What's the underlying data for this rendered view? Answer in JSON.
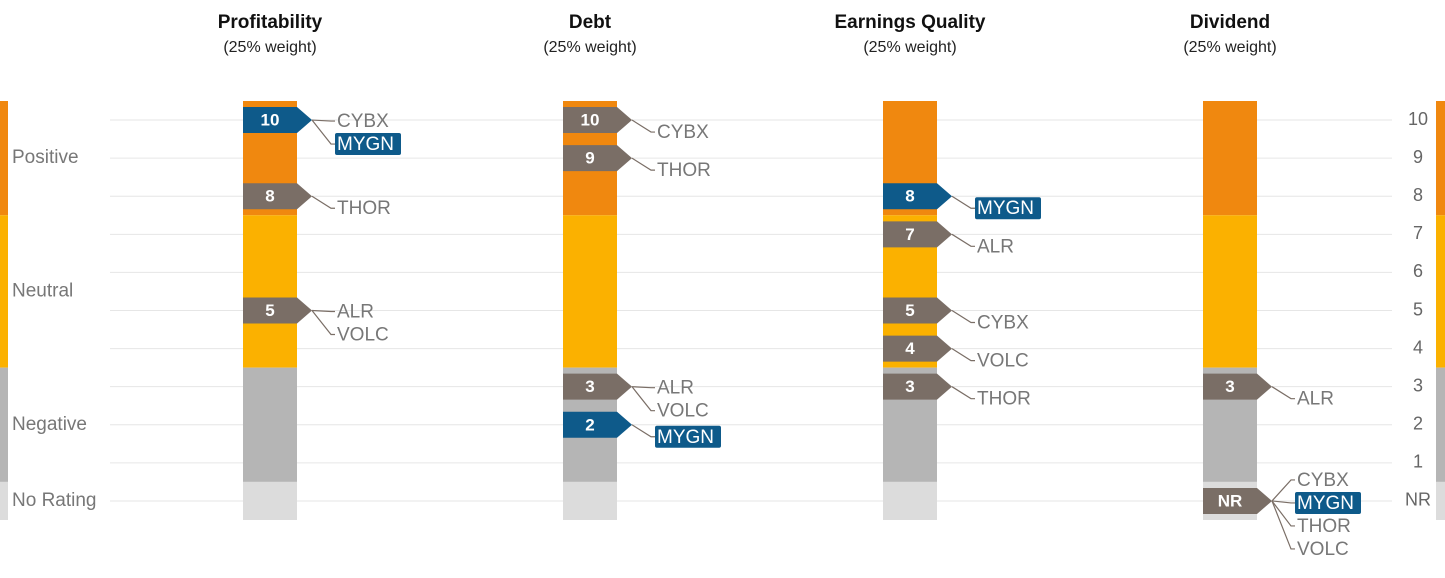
{
  "chart_data": {
    "type": "rating",
    "ylim": [
      -0.5,
      10.5
    ],
    "yticks": [
      {
        "value": 0,
        "label": "NR"
      },
      1,
      2,
      3,
      4,
      5,
      6,
      7,
      8,
      9,
      10
    ],
    "grid": true,
    "highlight": "MYGN",
    "bands": [
      {
        "name": "Positive",
        "from": 7.5,
        "to": 10.5,
        "color": "#f0880f"
      },
      {
        "name": "Neutral",
        "from": 3.5,
        "to": 7.5,
        "color": "#fbb100"
      },
      {
        "name": "Negative",
        "from": 0.5,
        "to": 3.5,
        "color": "#b5b5b5"
      },
      {
        "name": "No Rating",
        "from": -0.5,
        "to": 0.5,
        "color": "#dcdcdc"
      }
    ],
    "panels": [
      {
        "title": "Profitability",
        "subtitle": "(25% weight)",
        "markers": [
          {
            "score": 10,
            "color": "#0e5a8a",
            "companies": [
              "CYBX",
              "MYGN"
            ]
          },
          {
            "score": 8,
            "color": "#7a6e66",
            "companies": [
              "THOR"
            ]
          },
          {
            "score": 5,
            "color": "#7a6e66",
            "companies": [
              "ALR",
              "VOLC"
            ]
          }
        ]
      },
      {
        "title": "Debt",
        "subtitle": "(25% weight)",
        "markers": [
          {
            "score": 10,
            "color": "#7a6e66",
            "companies": [
              "CYBX"
            ]
          },
          {
            "score": 9,
            "color": "#7a6e66",
            "companies": [
              "THOR"
            ]
          },
          {
            "score": 3,
            "color": "#7a6e66",
            "companies": [
              "ALR",
              "VOLC"
            ]
          },
          {
            "score": 2,
            "color": "#0e5a8a",
            "companies": [
              "MYGN"
            ]
          }
        ]
      },
      {
        "title": "Earnings Quality",
        "subtitle": "(25% weight)",
        "markers": [
          {
            "score": 8,
            "color": "#0e5a8a",
            "companies": [
              "MYGN"
            ]
          },
          {
            "score": 7,
            "color": "#7a6e66",
            "companies": [
              "ALR"
            ]
          },
          {
            "score": 5,
            "color": "#7a6e66",
            "companies": [
              "CYBX"
            ]
          },
          {
            "score": 4,
            "color": "#7a6e66",
            "companies": [
              "VOLC"
            ]
          },
          {
            "score": 3,
            "color": "#7a6e66",
            "companies": [
              "THOR"
            ]
          }
        ]
      },
      {
        "title": "Dividend",
        "subtitle": "(25% weight)",
        "markers": [
          {
            "score": 3,
            "color": "#7a6e66",
            "companies": [
              "ALR"
            ]
          },
          {
            "score": {
              "value": 0,
              "label": "NR"
            },
            "color": "#7a6e66",
            "companies": [
              "CYBX",
              "MYGN",
              "THOR",
              "VOLC"
            ]
          }
        ]
      }
    ]
  }
}
